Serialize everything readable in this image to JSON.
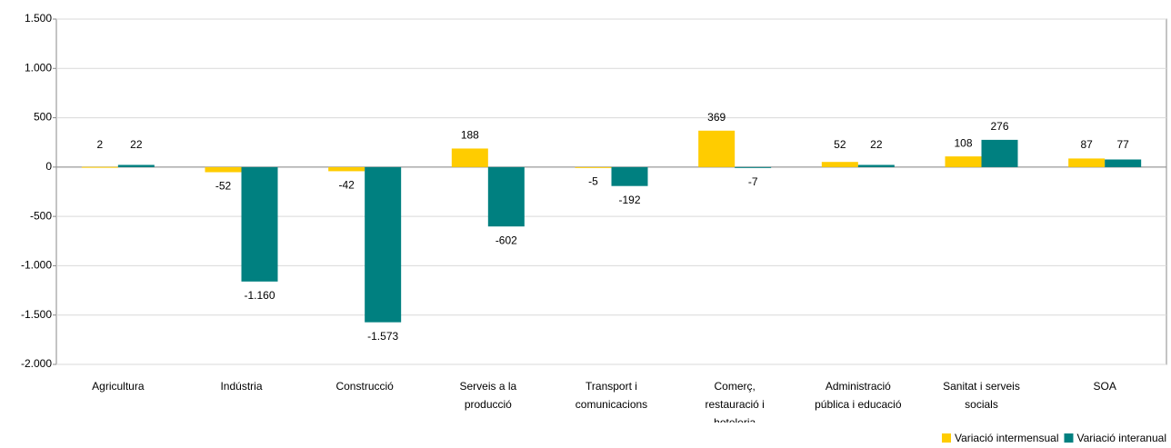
{
  "chart_data": {
    "type": "bar",
    "categories": [
      "Agricultura",
      "Indústria",
      "Construcció",
      "Serveis a la producció",
      "Transport i comunicacions",
      "Comerç, restauració i hoteleria",
      "Administració pública i educació",
      "Sanitat i serveis socials",
      "SOA"
    ],
    "series": [
      {
        "name": "Variació intermensual",
        "color": "#ffcc00",
        "values": [
          2,
          -52,
          -42,
          188,
          -5,
          369,
          52,
          108,
          87
        ],
        "value_labels": [
          "2",
          "-52",
          "-42",
          "188",
          "-5",
          "369",
          "52",
          "108",
          "87"
        ]
      },
      {
        "name": "Variació interanual",
        "color": "#008080",
        "values": [
          22,
          -1160,
          -1573,
          -602,
          -192,
          -7,
          22,
          276,
          77
        ],
        "value_labels": [
          "22",
          "-1.160",
          "-1.573",
          "-602",
          "-192",
          "-7",
          "22",
          "276",
          "77"
        ]
      }
    ],
    "ylim": [
      -2000,
      1500
    ],
    "yticks": [
      {
        "value": -2000,
        "label": "-2.000"
      },
      {
        "value": -1500,
        "label": "-1.500"
      },
      {
        "value": -1000,
        "label": "-1.000"
      },
      -500,
      0,
      500,
      {
        "value": 1000,
        "label": "1.000"
      },
      {
        "value": 1500,
        "label": "1.500"
      }
    ],
    "grid": true,
    "legend": "bottom-right"
  }
}
